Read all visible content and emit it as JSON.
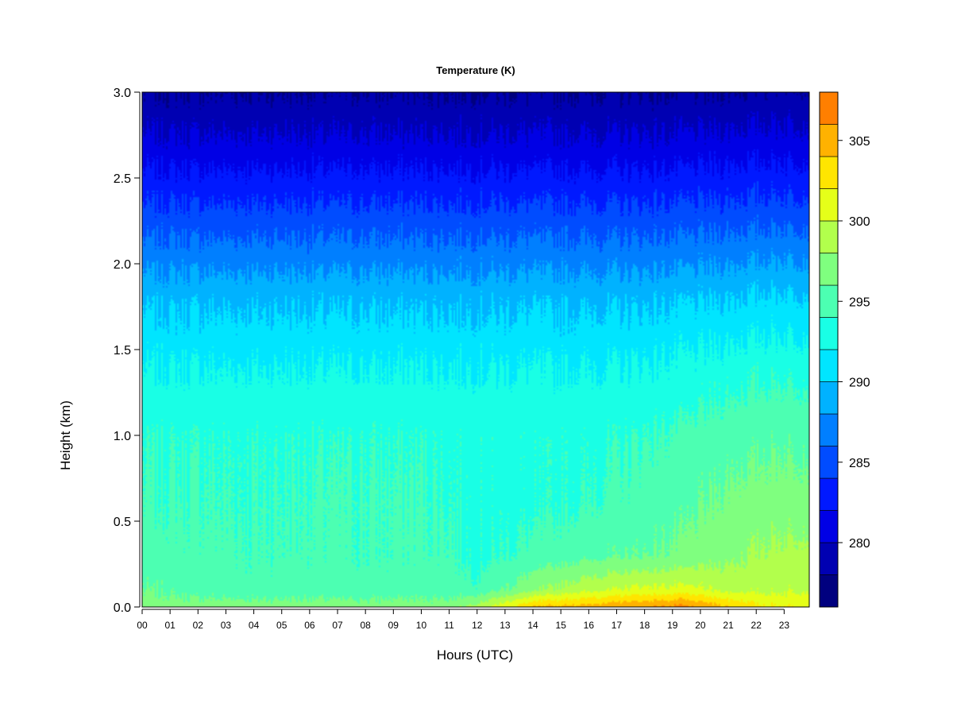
{
  "chart_data": {
    "type": "heatmap",
    "title": "Temperature (K)",
    "xlabel": "Hours (UTC)",
    "ylabel": "Height (km)",
    "x_ticks": [
      "00",
      "01",
      "02",
      "03",
      "04",
      "05",
      "06",
      "07",
      "08",
      "09",
      "10",
      "11",
      "12",
      "13",
      "14",
      "15",
      "16",
      "17",
      "18",
      "19",
      "20",
      "21",
      "22",
      "23"
    ],
    "xlim": [
      0,
      23.9
    ],
    "y_ticks": [
      "0.0",
      "0.5",
      "1.0",
      "1.5",
      "2.0",
      "2.5",
      "3.0"
    ],
    "ylim": [
      0,
      3
    ],
    "colorbar": {
      "ticks": [
        "280",
        "285",
        "290",
        "295",
        "300",
        "305"
      ],
      "range": [
        276,
        308
      ],
      "levels": [
        276,
        278,
        280,
        282,
        284,
        286,
        288,
        290,
        292,
        294,
        296,
        298,
        300,
        302,
        304,
        306,
        308
      ],
      "colors": [
        "#00007f",
        "#0000b2",
        "#0000e5",
        "#0019ff",
        "#004cff",
        "#007fff",
        "#00b2ff",
        "#00e5ff",
        "#19ffe5",
        "#4cffb2",
        "#7fff7f",
        "#b2ff4c",
        "#e5ff19",
        "#ffe500",
        "#ffb200",
        "#ff7f00",
        "#ff4c00",
        "#ff1900",
        "#e50000",
        "#b20000",
        "#7f0000"
      ]
    },
    "profiles": [
      {
        "hour": 0,
        "temps": [
          297,
          296,
          294.8,
          294.2,
          293.8,
          292.0,
          289.5,
          286.5,
          283.5,
          280.5,
          278
        ]
      },
      {
        "hour": 2,
        "temps": [
          297,
          295.2,
          294.6,
          294.2,
          293.8,
          292.0,
          289.5,
          286.5,
          283.5,
          280.5,
          278
        ]
      },
      {
        "hour": 4,
        "temps": [
          297,
          294.8,
          294.2,
          294.0,
          293.8,
          292.0,
          289.5,
          286.5,
          283.5,
          280.5,
          278
        ]
      },
      {
        "hour": 6,
        "temps": [
          297,
          295.0,
          294.4,
          294.2,
          293.8,
          292.0,
          289.5,
          286.5,
          283.5,
          280.5,
          278
        ]
      },
      {
        "hour": 8,
        "temps": [
          297,
          294.8,
          294.2,
          294.2,
          293.8,
          292.0,
          289.5,
          286.5,
          283.5,
          280.5,
          278
        ]
      },
      {
        "hour": 10,
        "temps": [
          297,
          295.0,
          294.4,
          294.2,
          293.8,
          292.0,
          289.5,
          286.5,
          283.5,
          280.5,
          278
        ]
      },
      {
        "hour": 11,
        "temps": [
          297,
          295.0,
          294.4,
          294.0,
          293.6,
          292.0,
          289.5,
          286.5,
          283.5,
          280.5,
          278
        ]
      },
      {
        "hour": 12,
        "temps": [
          299,
          294.5,
          293.5,
          293.5,
          293.5,
          292.0,
          289.5,
          286.5,
          283.5,
          280.5,
          278
        ]
      },
      {
        "hour": 14,
        "temps": [
          304,
          297.5,
          294.5,
          293.5,
          293.5,
          292.0,
          289.5,
          286.5,
          283.5,
          280.5,
          278
        ]
      },
      {
        "hour": 16,
        "temps": [
          305,
          299.5,
          295.5,
          294.0,
          293.6,
          292.0,
          289.5,
          286.5,
          283.5,
          280.5,
          278
        ]
      },
      {
        "hour": 18,
        "temps": [
          306,
          300.5,
          296.0,
          294.8,
          294.0,
          292.2,
          289.6,
          286.5,
          283.5,
          280.5,
          278
        ]
      },
      {
        "hour": 19.5,
        "temps": [
          306.5,
          300.5,
          296.5,
          295.5,
          294.4,
          292.5,
          289.8,
          286.6,
          283.6,
          280.5,
          278
        ]
      },
      {
        "hour": 21,
        "temps": [
          304,
          299.5,
          297.5,
          296.5,
          295.2,
          293.0,
          290.0,
          286.8,
          283.8,
          280.8,
          278
        ]
      },
      {
        "hour": 22.5,
        "temps": [
          302,
          299.5,
          298.5,
          297.0,
          295.6,
          293.4,
          290.4,
          287.2,
          284.0,
          281.0,
          278.5
        ]
      },
      {
        "hour": 23.9,
        "temps": [
          302,
          299.8,
          298.8,
          297.0,
          295.6,
          293.4,
          290.4,
          287.2,
          284.0,
          281.0,
          278.5
        ]
      }
    ],
    "profile_heights": [
      0.0,
      0.1,
      0.3,
      0.6,
      1.0,
      1.4,
      1.8,
      2.1,
      2.4,
      2.7,
      3.0
    ],
    "grid": false,
    "legend": "colorbar-right"
  }
}
